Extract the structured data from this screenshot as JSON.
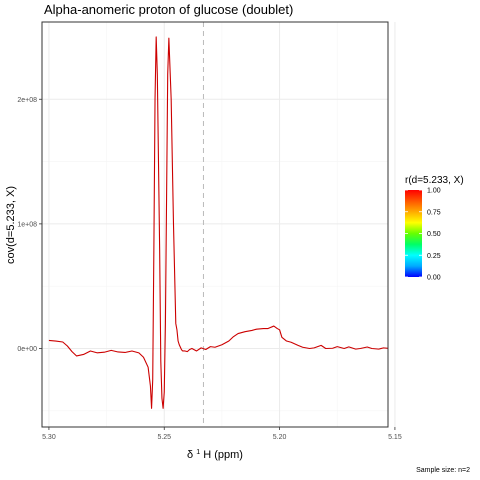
{
  "chart_data": {
    "type": "line",
    "title": "Alpha-anomeric proton of glucose (doublet)",
    "xlabel_main": "δ",
    "xlabel_sup": "1",
    "xlabel_rest": "H (ppm)",
    "ylabel": "cov(d=5.233, X)",
    "caption": "Sample size: n=2",
    "x_reversed": true,
    "xlim": [
      5.153,
      5.303
    ],
    "ylim": [
      -63000000,
      262000000
    ],
    "x_ticks": [
      {
        "value": 5.3,
        "label": "5.30"
      },
      {
        "value": 5.25,
        "label": "5.25"
      },
      {
        "value": 5.2,
        "label": "5.20"
      },
      {
        "value": 5.15,
        "label": "5.15"
      }
    ],
    "y_ticks": [
      {
        "value": 0,
        "label": "0e+00"
      },
      {
        "value": 100000000,
        "label": "1e+08"
      },
      {
        "value": 200000000,
        "label": "2e+08"
      }
    ],
    "reference_line_x": 5.233,
    "grid": true,
    "series": [
      {
        "color": "#cc0000",
        "x": [
          5.3,
          5.297,
          5.294,
          5.292,
          5.29,
          5.288,
          5.285,
          5.282,
          5.279,
          5.276,
          5.273,
          5.27,
          5.267,
          5.264,
          5.261,
          5.259,
          5.257,
          5.256,
          5.2555,
          5.255,
          5.2545,
          5.254,
          5.2535,
          5.253,
          5.252,
          5.2515,
          5.251,
          5.2505,
          5.25,
          5.2495,
          5.249,
          5.2485,
          5.248,
          5.247,
          5.246,
          5.245,
          5.2445,
          5.244,
          5.2435,
          5.243,
          5.2425,
          5.242,
          5.241,
          5.24,
          5.239,
          5.238,
          5.236,
          5.234,
          5.232,
          5.23,
          5.228,
          5.225,
          5.222,
          5.22,
          5.218,
          5.215,
          5.212,
          5.21,
          5.207,
          5.205,
          5.2025,
          5.201,
          5.2,
          5.199,
          5.197,
          5.195,
          5.192,
          5.19,
          5.187,
          5.185,
          5.182,
          5.18,
          5.177,
          5.175,
          5.172,
          5.17,
          5.167,
          5.165,
          5.162,
          5.16,
          5.157,
          5.155,
          5.152,
          5.15
        ],
        "y": [
          6500000,
          6000000,
          5200000,
          2000000,
          -2500000,
          -6000000,
          -4800000,
          -2000000,
          -3500000,
          -3000000,
          -1500000,
          -2800000,
          -3200000,
          -2000000,
          -3500000,
          -7000000,
          -15000000,
          -30000000,
          -48000000,
          -25000000,
          80000000,
          200000000,
          250000000,
          220000000,
          80000000,
          -10000000,
          -40000000,
          -48000000,
          -35000000,
          20000000,
          120000000,
          220000000,
          249000000,
          200000000,
          100000000,
          20000000,
          15000000,
          6000000,
          3000000,
          1000000,
          -1000000,
          -2000000,
          -2000000,
          -2500000,
          -800000,
          0,
          -2000000,
          500000,
          -800000,
          1500000,
          1000000,
          3000000,
          6000000,
          9500000,
          12000000,
          13500000,
          14500000,
          15500000,
          16000000,
          16000000,
          18000000,
          16000000,
          15000000,
          9000000,
          6000000,
          5000000,
          2500000,
          1000000,
          0,
          500000,
          2500000,
          0,
          200000,
          1500000,
          0,
          1300000,
          -500000,
          0,
          1200000,
          0,
          -500000,
          500000,
          0,
          300000
        ]
      }
    ],
    "legend": {
      "title": "r(d=5.233, X)",
      "position": "right",
      "colors": [
        "#0000ff",
        "#00aaff",
        "#00ffff",
        "#00ff66",
        "#66ff00",
        "#ffff00",
        "#ffaa00",
        "#ff5500",
        "#ff0000"
      ],
      "ticks": [
        {
          "value": 0.0,
          "label": "0.00"
        },
        {
          "value": 0.25,
          "label": "0.25"
        },
        {
          "value": 0.5,
          "label": "0.50"
        },
        {
          "value": 0.75,
          "label": "0.75"
        },
        {
          "value": 1.0,
          "label": "1.00"
        }
      ]
    },
    "colors": {
      "panel_border": "#333333",
      "grid_major": "#ebebeb",
      "grid_minor": "#f5f5f5",
      "reference_line": "#bbbbbb",
      "tick_text": "#4d4d4d"
    }
  }
}
